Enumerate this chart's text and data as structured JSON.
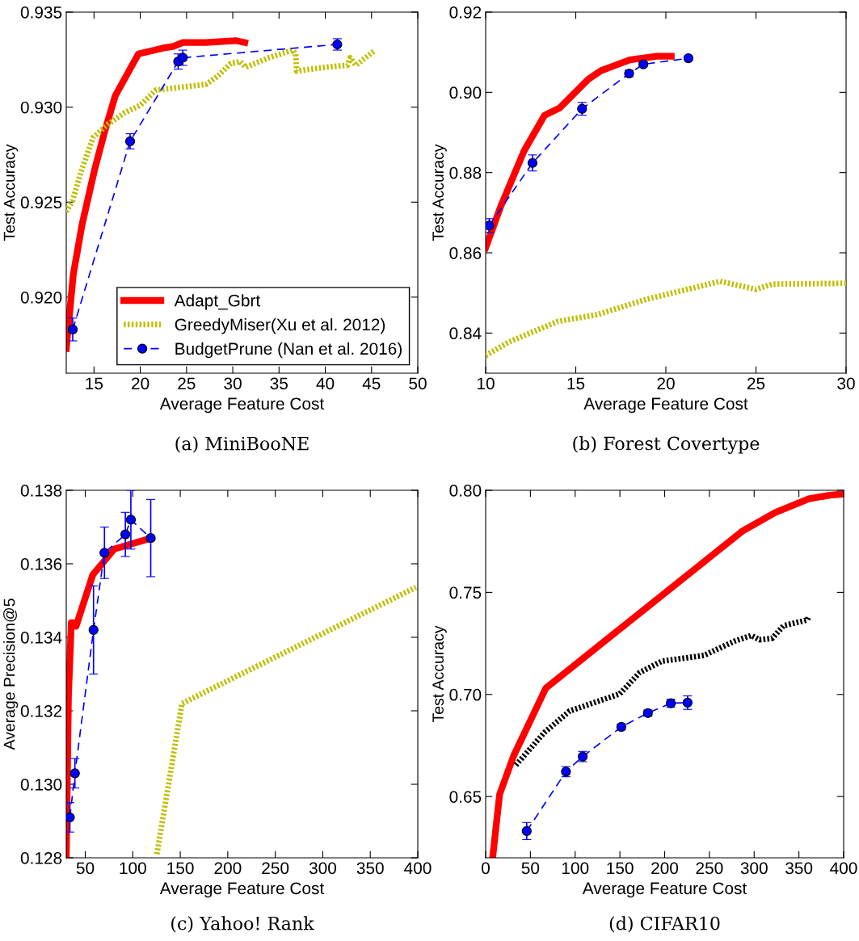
{
  "chart_data": [
    {
      "type": "line",
      "xlabel": "Average Feature Cost",
      "ylabel": "Test Accuracy",
      "annotations": [
        "(a) MiniBooNE"
      ],
      "legend": "lower right",
      "grid": false,
      "xlim": [
        12,
        50
      ],
      "xticks": [
        15,
        20,
        25,
        30,
        35,
        40,
        45,
        50
      ],
      "ylim": [
        0.916,
        0.935
      ],
      "yticks": [
        {
          "value": 0.92,
          "label": "0.920"
        },
        0.925,
        {
          "value": 0.93,
          "label": "0.930"
        },
        0.935
      ],
      "series": [
        {
          "name": "Adapt_Gbrt",
          "color": "#ff0000",
          "line_style": "solid",
          "marker": "none",
          "x": [
            12,
            12.76,
            13.7,
            15.06,
            16.2,
            17.3,
            19.8,
            22.4,
            23.6,
            24.6,
            27.1,
            30.3,
            31.3
          ],
          "values": [
            0.9173,
            0.9212,
            0.9238,
            0.9267,
            0.9288,
            0.9306,
            0.9328,
            0.9331,
            0.9332,
            0.9334,
            0.9334,
            0.9335,
            0.9334
          ]
        },
        {
          "name": "GreedyMiser(Xu et al. 2012)",
          "color": "#bfbf00",
          "line_style": "dotted",
          "marker": "none",
          "x": [
            12,
            12.7,
            13.6,
            14.9,
            16.5,
            18.3,
            20.0,
            21.7,
            23.6,
            27.1,
            28.3,
            29.8,
            30.8,
            31.4,
            33.9,
            36.5,
            36.8,
            36.9,
            40.0,
            42.4,
            42.7,
            43.3,
            45.4
          ],
          "values": [
            0.9245,
            0.9251,
            0.9266,
            0.9284,
            0.9291,
            0.9297,
            0.9301,
            0.9309,
            0.931,
            0.9312,
            0.9316,
            0.9323,
            0.9324,
            0.9321,
            0.9326,
            0.933,
            0.9328,
            0.9319,
            0.9321,
            0.9322,
            0.9326,
            0.9322,
            0.933
          ]
        },
        {
          "name": "BudgetPrune (Nan et al. 2016)",
          "color": "#0000ff",
          "line_style": "dashed",
          "marker": "circle",
          "x": [
            12.7,
            18.9,
            24.1,
            24.6,
            41.3
          ],
          "values": [
            0.9183,
            0.9282,
            0.9324,
            0.9326,
            0.9333
          ],
          "errors": [
            0.0006,
            0.0004,
            0.0004,
            0.0004,
            0.0003
          ]
        }
      ]
    },
    {
      "type": "line",
      "xlabel": "Average Feature Cost",
      "ylabel": "Test Accuracy",
      "annotations": [
        "(b) Forest Covertype"
      ],
      "grid": false,
      "xlim": [
        10,
        30
      ],
      "xticks": [
        10,
        15,
        20,
        25,
        30
      ],
      "ylim": [
        0.83,
        0.92
      ],
      "yticks": [
        0.84,
        0.86,
        0.88,
        {
          "value": 0.9,
          "label": "0.90"
        },
        0.92
      ],
      "series": [
        {
          "color": "#ff0000",
          "line_style": "solid",
          "marker": "none",
          "x": [
            10,
            10.84,
            12.13,
            13.27,
            14.1,
            15.7,
            16.4,
            18.0,
            19.5,
            20.3
          ],
          "values": [
            0.8613,
            0.8716,
            0.8854,
            0.8943,
            0.8961,
            0.9033,
            0.9054,
            0.9081,
            0.909,
            0.909
          ]
        },
        {
          "color": "#bfbf00",
          "line_style": "dotted",
          "marker": "none",
          "x": [
            10,
            11.3,
            13.1,
            14.0,
            16.2,
            18.9,
            21.2,
            23.0,
            25.0,
            25.9,
            30
          ],
          "values": [
            0.8344,
            0.8378,
            0.8412,
            0.8429,
            0.8446,
            0.8484,
            0.8509,
            0.8529,
            0.8509,
            0.8522,
            0.8524
          ]
        },
        {
          "color": "#0000ff",
          "line_style": "dashed",
          "marker": "circle",
          "x": [
            10.2,
            12.6,
            15.35,
            17.96,
            18.75,
            21.25
          ],
          "values": [
            0.8668,
            0.8824,
            0.8959,
            0.9047,
            0.907,
            0.9085
          ],
          "errors": [
            0.0017,
            0.002,
            0.0016,
            0.0008,
            0.0005,
            0.0005
          ]
        }
      ]
    },
    {
      "type": "line",
      "xlabel": "Average Feature Cost",
      "ylabel": "Average Precision@5",
      "annotations": [
        "(c) Yahoo! Rank"
      ],
      "grid": false,
      "xlim": [
        30,
        400
      ],
      "xticks": [
        50,
        100,
        150,
        200,
        250,
        300,
        350,
        400
      ],
      "ylim": [
        0.128,
        0.138
      ],
      "yticks": [
        0.128,
        {
          "value": 0.13,
          "label": "0.130"
        },
        0.132,
        0.134,
        0.136,
        0.138
      ],
      "series": [
        {
          "color": "#ff0000",
          "line_style": "solid",
          "marker": "none",
          "x": [
            30,
            32.3,
            35.3,
            37.3,
            40.3,
            57.9,
            80.4,
            119.5
          ],
          "values": [
            0.128,
            0.1324,
            0.1344,
            0.1344,
            0.1343,
            0.1357,
            0.1364,
            0.1367
          ]
        },
        {
          "color": "#bfbf00",
          "line_style": "dotted",
          "marker": "none",
          "x": [
            125.4,
            151.8,
            398
          ],
          "values": [
            0.1281,
            0.1322,
            0.13536
          ]
        },
        {
          "color": "#0000ff",
          "line_style": "dashed",
          "marker": "circle",
          "x": [
            33.8,
            39.1,
            58.7,
            70.2,
            92.2,
            98,
            118.9
          ],
          "values": [
            0.1291,
            0.1303,
            0.1342,
            0.1363,
            0.1368,
            0.1372,
            0.1367
          ],
          "errors": [
            0.0004,
            0.0004,
            0.0012,
            0.0007,
            0.0006,
            0.0008,
            0.00105
          ]
        }
      ]
    },
    {
      "type": "line",
      "xlabel": "Average Feature Cost",
      "ylabel": "Test Accuracy",
      "annotations": [
        "(d) CIFAR10"
      ],
      "grid": false,
      "xlim": [
        0,
        400
      ],
      "xticks": [
        0,
        50,
        100,
        150,
        200,
        250,
        300,
        350,
        400
      ],
      "ylim": [
        0.62,
        0.8
      ],
      "yticks": [
        0.65,
        {
          "value": 0.7,
          "label": "0.70"
        },
        0.75,
        {
          "value": 0.8,
          "label": "0.80"
        }
      ],
      "series": [
        {
          "color": "#ff0000",
          "line_style": "solid",
          "marker": "none",
          "x": [
            7.8,
            15.6,
            31.2,
            67.2,
            287.5,
            323.4,
            360.9,
            384.4,
            399.4
          ],
          "values": [
            0.62,
            0.6511,
            0.6699,
            0.7031,
            0.7802,
            0.7891,
            0.7958,
            0.7976,
            0.7982
          ]
        },
        {
          "color": "#000000",
          "line_style": "dotted",
          "marker": "none",
          "x": [
            33.8,
            65.6,
            93.8,
            121.9,
            150,
            171.9,
            196.9,
            243.8,
            278,
            296.9,
            306,
            320.3,
            332.8,
            359.4,
            360.9
          ],
          "values": [
            0.6654,
            0.6814,
            0.6919,
            0.6961,
            0.7003,
            0.7107,
            0.7163,
            0.7191,
            0.7261,
            0.7289,
            0.7268,
            0.7275,
            0.7337,
            0.7365,
            0.738
          ]
        },
        {
          "color": "#0000ff",
          "line_style": "dashed",
          "marker": "circle",
          "x": [
            45.9,
            89.7,
            108.4,
            151.6,
            181.3,
            206.9,
            225.6
          ],
          "values": [
            0.6331,
            0.6622,
            0.6696,
            0.6841,
            0.6909,
            0.6957,
            0.696
          ],
          "errors": [
            0.0042,
            0.0025,
            0.0025,
            0.0015,
            0.0015,
            0.002,
            0.0033
          ]
        }
      ]
    }
  ]
}
